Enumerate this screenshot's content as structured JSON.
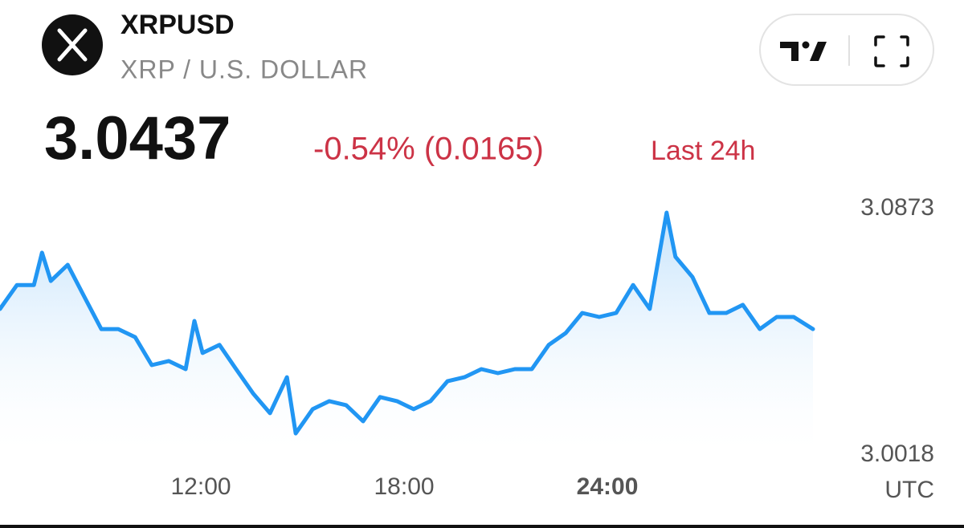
{
  "header": {
    "symbol": "XRPUSD",
    "name": "XRP / U.S. DOLLAR",
    "price": "3.0437",
    "change": "-0.54% (0.0165)",
    "period": "Last 24h"
  },
  "chart_data": {
    "type": "line",
    "color": "#2196f3",
    "x_label": "UTC",
    "x": [
      6.07,
      6.57,
      7.07,
      7.31,
      7.57,
      8.07,
      8.56,
      9.06,
      9.56,
      10.06,
      10.55,
      11.05,
      11.55,
      11.81,
      12.05,
      12.55,
      13.04,
      13.54,
      14.04,
      14.54,
      14.8,
      15.3,
      15.79,
      16.29,
      16.79,
      17.29,
      17.79,
      18.28,
      18.78,
      19.28,
      19.78,
      20.28,
      20.77,
      21.27,
      21.77,
      22.27,
      22.77,
      23.26,
      23.76,
      24.26,
      24.76,
      25.25,
      25.75,
      26.01,
      26.51,
      27.01,
      27.51,
      28.0,
      28.5,
      29.0,
      29.5,
      30.07
    ],
    "values": [
      3.0525,
      3.0608,
      3.0608,
      3.072,
      3.0622,
      3.0678,
      3.0567,
      3.0455,
      3.0455,
      3.0427,
      3.033,
      3.0344,
      3.0316,
      3.0483,
      3.0372,
      3.04,
      3.0316,
      3.0232,
      3.0163,
      3.0288,
      3.0093,
      3.0177,
      3.0205,
      3.0191,
      3.0135,
      3.0219,
      3.0205,
      3.0177,
      3.0205,
      3.0274,
      3.0288,
      3.0316,
      3.0302,
      3.0316,
      3.0316,
      3.04,
      3.0441,
      3.0511,
      3.0497,
      3.0511,
      3.0608,
      3.0525,
      3.0859,
      3.0706,
      3.0636,
      3.0511,
      3.0511,
      3.0539,
      3.0455,
      3.0497,
      3.0497,
      3.0455
    ],
    "xlim": [
      6.07,
      30.07
    ],
    "xticks": [
      {
        "value": 12,
        "label": "12:00"
      },
      {
        "value": 18,
        "label": "18:00"
      },
      {
        "value": 24,
        "label": "24:00"
      }
    ],
    "ylim": [
      3.0018,
      3.0873
    ],
    "yticks": [
      3.0018,
      3.0873
    ]
  }
}
